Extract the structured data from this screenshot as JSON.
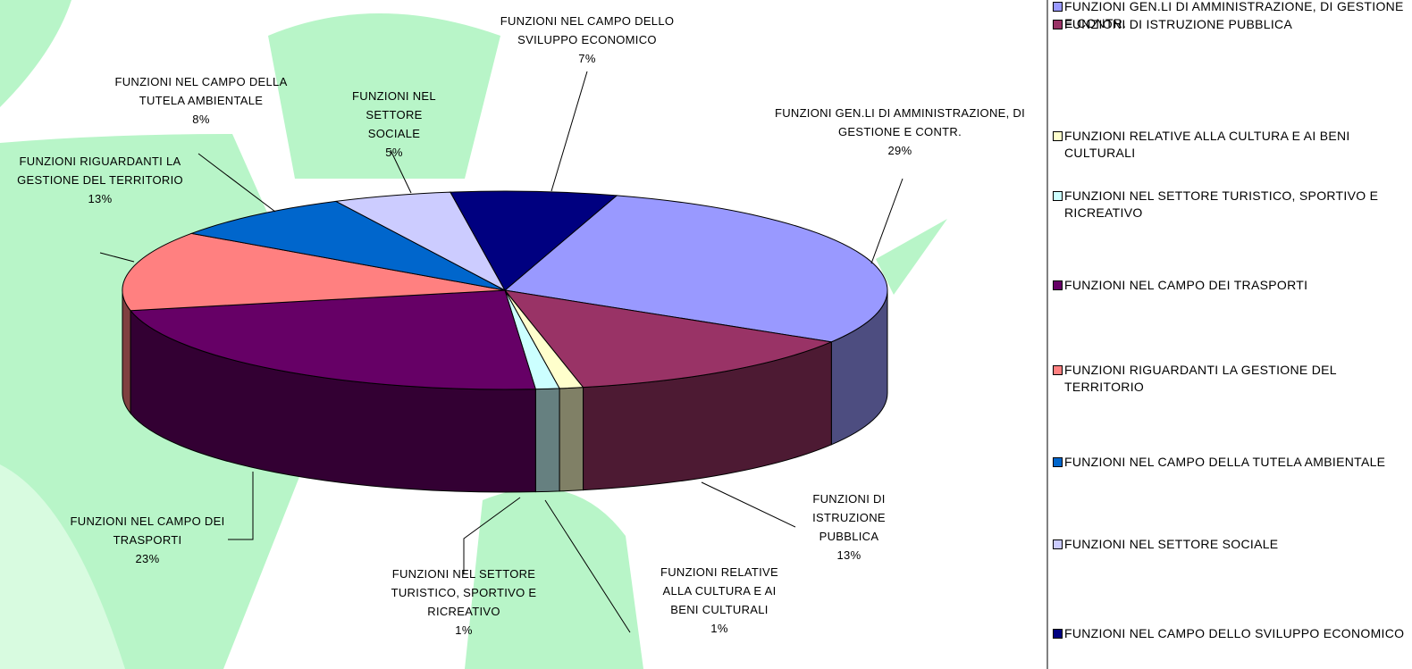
{
  "chart_data": {
    "type": "pie",
    "categories": [
      "FUNZIONI GEN.LI DI AMMINISTRAZIONE, DI GESTIONE E CONTR.",
      "FUNZIONI DI ISTRUZIONE PUBBLICA",
      "FUNZIONI RELATIVE ALLA CULTURA E AI BENI CULTURALI",
      "FUNZIONI NEL SETTORE TURISTICO, SPORTIVO E RICREATIVO",
      "FUNZIONI NEL CAMPO DEI TRASPORTI",
      "FUNZIONI RIGUARDANTI LA GESTIONE DEL TERRITORIO",
      "FUNZIONI NEL CAMPO DELLA TUTELA AMBIENTALE",
      "FUNZIONI NEL SETTORE SOCIALE",
      "FUNZIONI NEL CAMPO DELLO SVILUPPO ECONOMICO"
    ],
    "values": [
      29,
      13,
      1,
      1,
      23,
      13,
      8,
      5,
      7
    ],
    "value_labels": [
      "29%",
      "13%",
      "1%",
      "1%",
      "23%",
      "13%",
      "8%",
      "5%",
      "7%"
    ],
    "colors": [
      "#9999ff",
      "#993366",
      "#ffffcc",
      "#ccffff",
      "#660066",
      "#ff8080",
      "#0066cc",
      "#ccccff",
      "#000080"
    ],
    "legend": "right"
  }
}
